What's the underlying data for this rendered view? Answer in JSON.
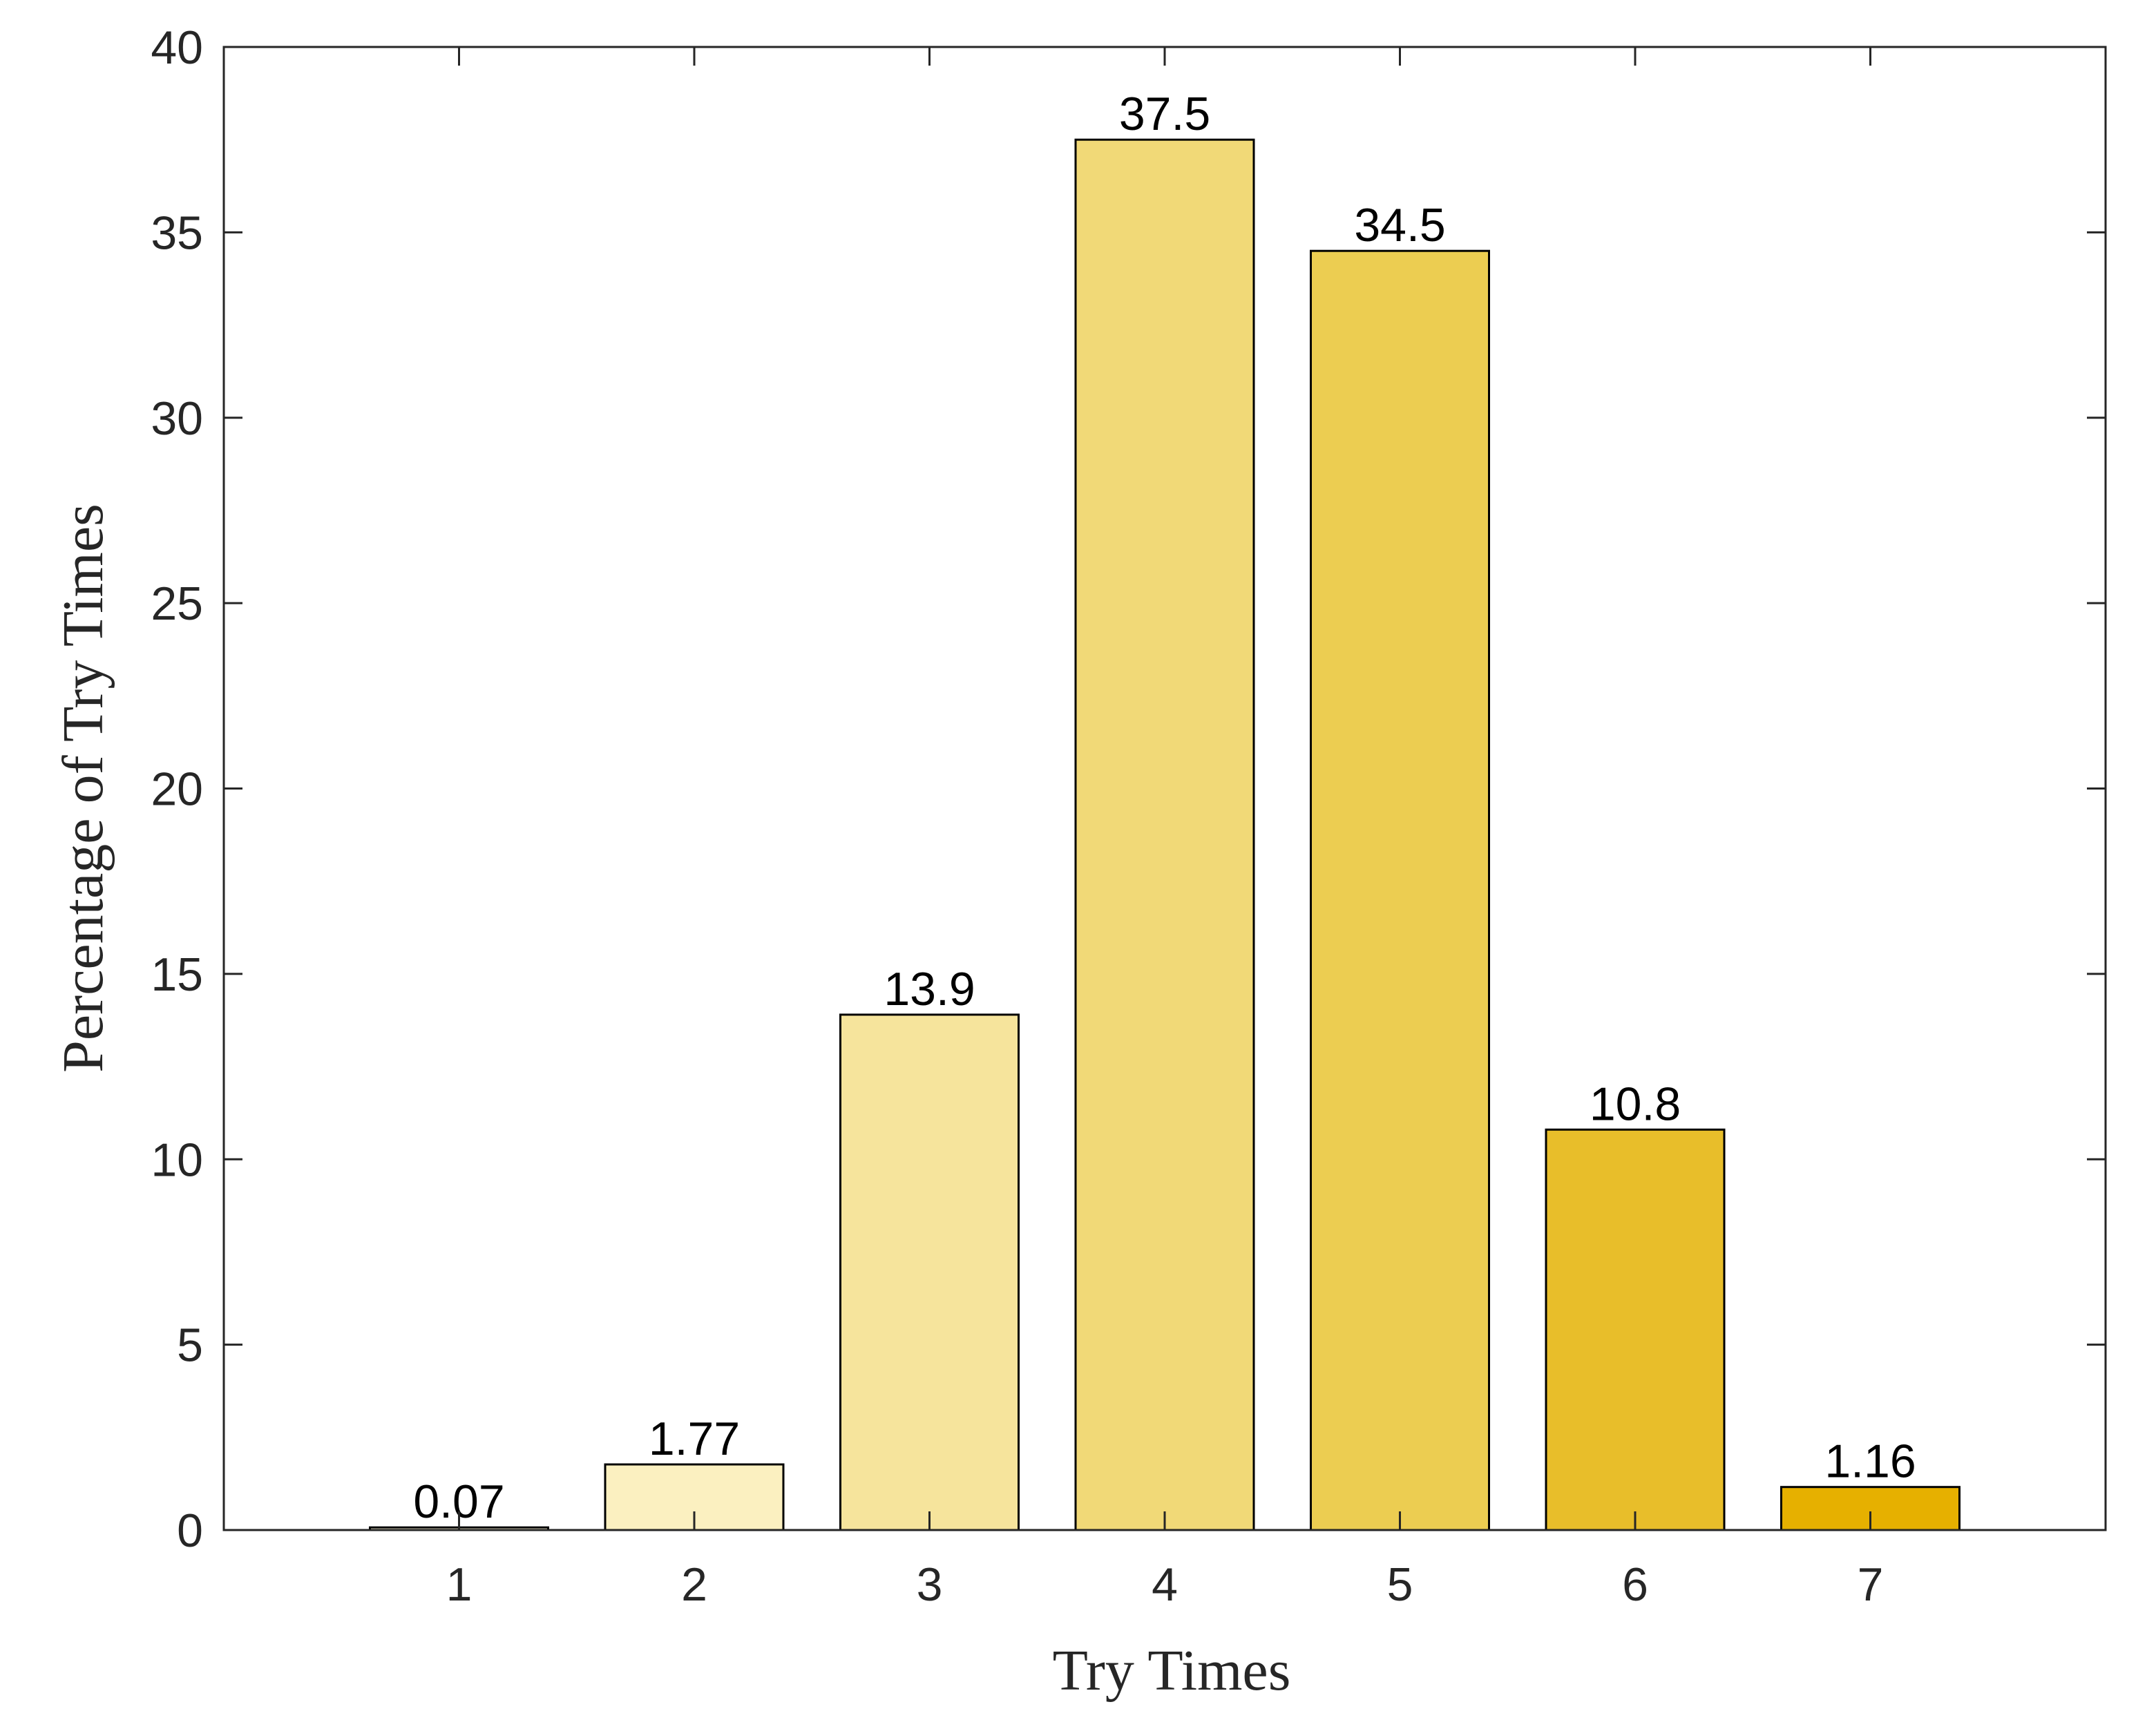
{
  "chart_data": {
    "type": "bar",
    "title": "",
    "xlabel": "Try Times",
    "ylabel": "Percentage of Try Times",
    "categories": [
      "1",
      "2",
      "3",
      "4",
      "5",
      "6",
      "7"
    ],
    "values": [
      0.07,
      1.77,
      13.9,
      37.5,
      34.5,
      10.8,
      1.16
    ],
    "data_labels": [
      "0.07",
      "1.77",
      "13.9",
      "37.5",
      "34.5",
      "10.8",
      "1.16"
    ],
    "bar_colors": [
      "#FDF6D6",
      "#FBF0C0",
      "#F6E49C",
      "#F1D977",
      "#ECCD51",
      "#E8BE2A",
      "#E6B000"
    ],
    "xlim": [
      0,
      8
    ],
    "ylim": [
      0,
      40
    ],
    "yticks": [
      0,
      5,
      10,
      15,
      20,
      25,
      30,
      35,
      40
    ],
    "grid": false,
    "legend": "none",
    "axis_color": "#262626",
    "bar_edge_color": "#000000"
  }
}
